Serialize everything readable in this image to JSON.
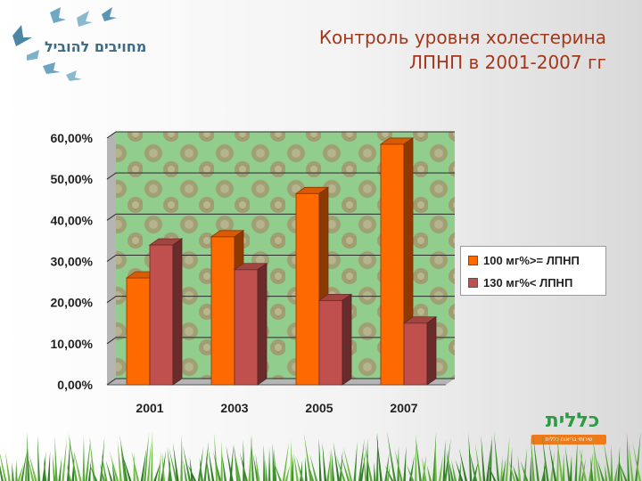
{
  "logo_left": {
    "text": "מחויבים להוביל",
    "icon": "birds-icon",
    "color": "#3b6c86"
  },
  "title": {
    "line1": "Контроль уровня холестерина",
    "line2": "ЛПНП в 2001-2007 гг",
    "color": "#a3371c"
  },
  "chart_data": {
    "type": "bar",
    "categories": [
      "2001",
      "2003",
      "2005",
      "2007"
    ],
    "series": [
      {
        "name": "100 мг%>= ЛПНП",
        "values": [
          26,
          36,
          46.5,
          58.5
        ],
        "color": "#ff6a00"
      },
      {
        "name": "130 мг%< ЛПНП",
        "values": [
          34,
          28,
          20.5,
          15
        ],
        "color": "#c0504d"
      }
    ],
    "y_ticks": [
      "0,00%",
      "10,00%",
      "20,00%",
      "30,00%",
      "40,00%",
      "50,00%",
      "60,00%"
    ],
    "ylim": [
      0,
      60
    ],
    "grid": true,
    "legend_position": "right",
    "style": "3d-bar"
  },
  "logo_right": {
    "name": "כללית",
    "tagline": "שירותי בריאות כללית",
    "icon": "clalit-logo-icon",
    "color_green": "#2d9a45",
    "color_orange": "#f07a1a"
  }
}
